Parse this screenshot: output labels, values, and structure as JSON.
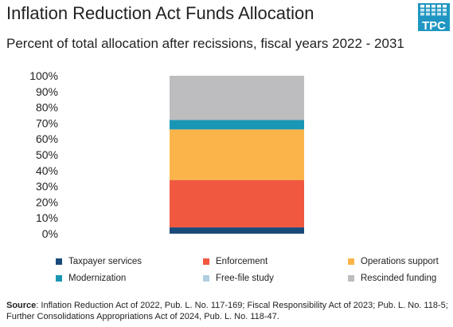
{
  "title": "Inflation Reduction Act Funds Allocation",
  "subtitle": "Percent of total  allocation after recissions, fiscal years 2022 - 2031",
  "logo": {
    "text": "TPC",
    "color": "#1f96c2"
  },
  "source": {
    "label": "Source",
    "text": ": Inflation Reduction Act of 2022, Pub. L. No. 117-169; Fiscal Responsibility Act of 2023; Pub. L. No. 118-5; Further Consolidations Appropriations Act of 2024, Pub. L. No. 118-47."
  },
  "chart_data": {
    "type": "bar",
    "stacked": true,
    "categories": [
      ""
    ],
    "series": [
      {
        "name": "Taxpayer services",
        "values": [
          4
        ],
        "color": "#1a4a7a"
      },
      {
        "name": "Enforcement",
        "values": [
          30
        ],
        "color": "#f0583f"
      },
      {
        "name": "Operations support",
        "values": [
          32
        ],
        "color": "#fbb44a"
      },
      {
        "name": "Modernization",
        "values": [
          6
        ],
        "color": "#1a96b5"
      },
      {
        "name": "Free-file study",
        "values": [
          0
        ],
        "color": "#b0cfe0"
      },
      {
        "name": "Rescinded funding",
        "values": [
          28
        ],
        "color": "#bdbdbf"
      }
    ],
    "yticks": [
      "0%",
      "10%",
      "20%",
      "30%",
      "40%",
      "50%",
      "60%",
      "70%",
      "80%",
      "90%",
      "100%"
    ],
    "ylim": [
      0,
      100
    ],
    "xlabel": "",
    "ylabel": "",
    "grid": false,
    "legend_position": "bottom"
  }
}
